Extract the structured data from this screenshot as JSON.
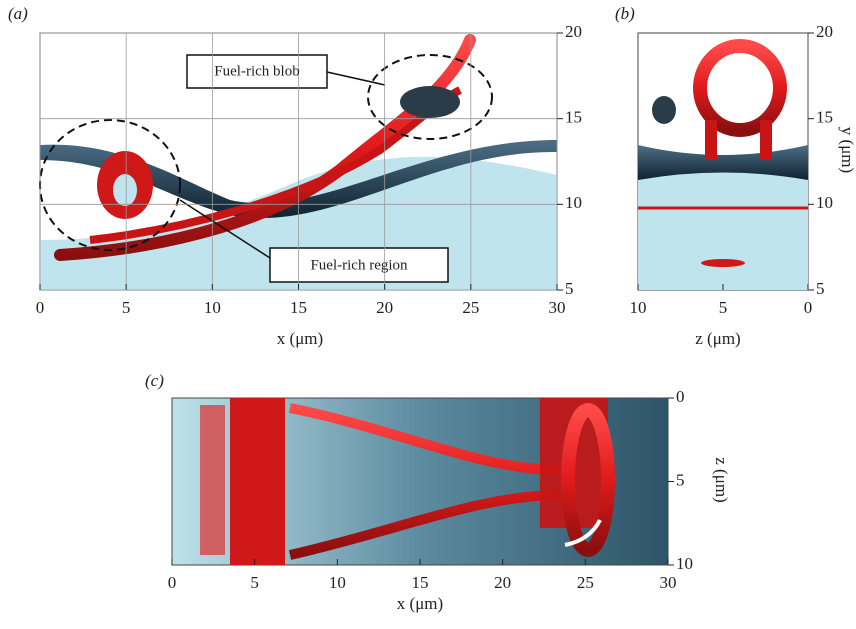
{
  "panels": [
    {
      "label": "(a)",
      "x_axis": {
        "label": "x (μm)",
        "lim": [
          0,
          30
        ],
        "ticks": [
          0,
          5,
          10,
          15,
          20,
          25,
          30
        ]
      },
      "y_axis": {
        "lim": [
          5,
          20
        ],
        "ticks": [
          5,
          10,
          15,
          20
        ]
      },
      "annotations": [
        "Fuel-rich blob",
        "Fuel-rich region"
      ]
    },
    {
      "label": "(b)",
      "x_axis": {
        "label": "z (μm)",
        "lim": [
          10,
          0
        ],
        "ticks": [
          10,
          5,
          0
        ]
      },
      "y_axis": {
        "label": "y (μm)",
        "lim": [
          5,
          20
        ],
        "ticks": [
          5,
          10,
          15,
          20
        ]
      }
    },
    {
      "label": "(c)",
      "x_axis": {
        "label": "x (μm)",
        "lim": [
          0,
          30
        ],
        "ticks": [
          0,
          5,
          10,
          15,
          20,
          25,
          30
        ]
      },
      "y_axis": {
        "label": "z (μm)",
        "lim": [
          0,
          10
        ],
        "ticks": [
          0,
          5,
          10
        ]
      }
    }
  ]
}
